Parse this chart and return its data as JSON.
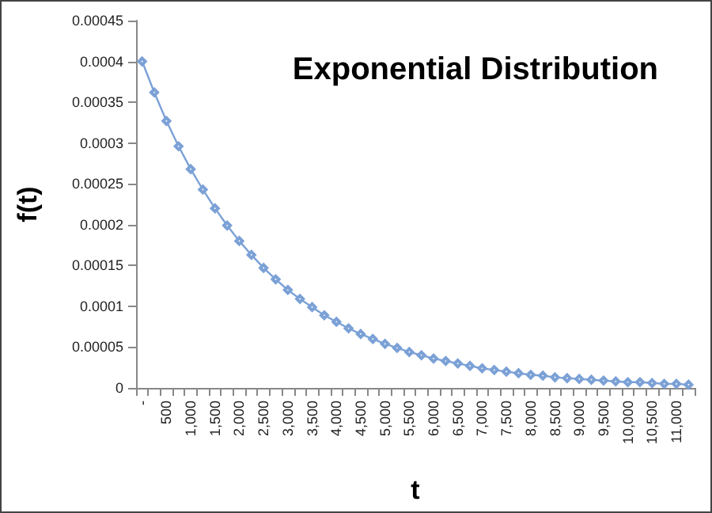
{
  "chart_data": {
    "type": "line",
    "title": "Exponential Distribution",
    "xlabel": "t",
    "ylabel": "f(t)",
    "categories": [
      "-",
      null,
      "500",
      null,
      "1,000",
      null,
      "1,500",
      null,
      "2,000",
      null,
      "2,500",
      null,
      "3,000",
      null,
      "3,500",
      null,
      "4,000",
      null,
      "4,500",
      null,
      "5,000",
      null,
      "5,500",
      null,
      "6,000",
      null,
      "6,500",
      null,
      "7,000",
      null,
      "7,500",
      null,
      "8,000",
      null,
      "8,500",
      null,
      "9,000",
      null,
      "9,500",
      null,
      "10,000",
      null,
      "10,500",
      null,
      "11,000",
      null
    ],
    "series": [
      {
        "color": "#7ba1d6",
        "values": [
          0.0004,
          0.000362,
          0.000327,
          0.000296,
          0.000268,
          0.000243,
          0.00022,
          0.000199,
          0.00018,
          0.000163,
          0.000147,
          0.000133,
          0.00012,
          0.000109,
          9.9e-05,
          8.9e-05,
          8.1e-05,
          7.3e-05,
          6.6e-05,
          6e-05,
          5.4e-05,
          4.9e-05,
          4.4e-05,
          4e-05,
          3.6e-05,
          3.3e-05,
          3e-05,
          2.7e-05,
          2.4e-05,
          2.2e-05,
          2e-05,
          1.8e-05,
          1.6e-05,
          1.5e-05,
          1.3e-05,
          1.2e-05,
          1.1e-05,
          1e-05,
          9e-06,
          8e-06,
          7e-06,
          7e-06,
          6e-06,
          5e-06,
          5e-06,
          4e-06
        ]
      }
    ],
    "ylim": [
      0,
      0.00045
    ],
    "yticks": [
      0,
      {
        "value": 5e-05,
        "label": "0.00005"
      },
      0.0001,
      0.00015,
      0.0002,
      0.00025,
      0.0003,
      0.00035,
      0.0004,
      0.00045
    ],
    "grid": false,
    "marker": "diamond",
    "line_style": "solid"
  }
}
